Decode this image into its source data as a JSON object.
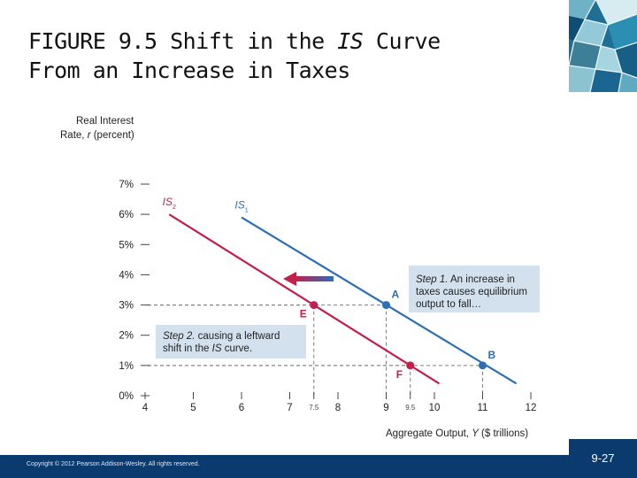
{
  "slide": {
    "title_line1_pre": "FIGURE 9.5  Shift in the ",
    "title_line1_em": "IS",
    "title_line1_post": " Curve",
    "title_line2": "From an Increase in Taxes",
    "copyright": "Copyright © 2012 Pearson Addison-Wesley. All rights reserved.",
    "page_number": "9-27",
    "colors": {
      "navy": "#0b3b6e",
      "accent_blue": "#2c6fb6",
      "accent_red": "#c41e4a",
      "box_bg": "#d3e1ee"
    }
  },
  "chart_data": {
    "type": "line",
    "ylabel_line1": "Real Interest",
    "ylabel_line2_pre": "Rate, ",
    "ylabel_line2_em": "r",
    "ylabel_line2_post": " (percent)",
    "xlabel_pre": "Aggregate Output, ",
    "xlabel_em": "Y",
    "xlabel_post": " ($ trillions)",
    "xlim": [
      4,
      12
    ],
    "ylim": [
      0,
      7
    ],
    "xticks": [
      "4",
      "5",
      "6",
      "7",
      "8",
      "9",
      "10",
      "11",
      "12"
    ],
    "yticks": [
      "0%",
      "1%",
      "2%",
      "3%",
      "4%",
      "5%",
      "6%",
      "7%"
    ],
    "series": [
      {
        "name": "IS",
        "subscript": "1",
        "color": "#2c6fb6",
        "x": [
          6,
          11.7
        ],
        "y": [
          5.9,
          0.4
        ]
      },
      {
        "name": "IS",
        "subscript": "2",
        "color": "#c41e4a",
        "x": [
          4.5,
          10.1
        ],
        "y": [
          6.0,
          0.4
        ]
      }
    ],
    "points": [
      {
        "label": "A",
        "x": 9,
        "y": 3,
        "series": "IS1"
      },
      {
        "label": "B",
        "x": 11,
        "y": 1,
        "series": "IS1"
      },
      {
        "label": "E",
        "x": 7.5,
        "y": 3,
        "series": "IS2"
      },
      {
        "label": "F",
        "x": 9.5,
        "y": 1,
        "series": "IS2"
      }
    ],
    "extra_tick_labels": [
      {
        "x": 7.5,
        "label": "7.5"
      },
      {
        "x": 9.5,
        "label": "9.5"
      }
    ],
    "annotations": [
      {
        "id": "step1",
        "text_line1_em": "Step 1.",
        "text_line1_post": " An increase in",
        "text_line2": "taxes causes equilibrium",
        "text_line3": "output to fall…"
      },
      {
        "id": "step2",
        "text_line1_em": "Step 2.",
        "text_line1_post": " causing a leftward",
        "text_line2_pre": "shift in the ",
        "text_line2_em": "IS",
        "text_line2_post": " curve."
      }
    ]
  }
}
